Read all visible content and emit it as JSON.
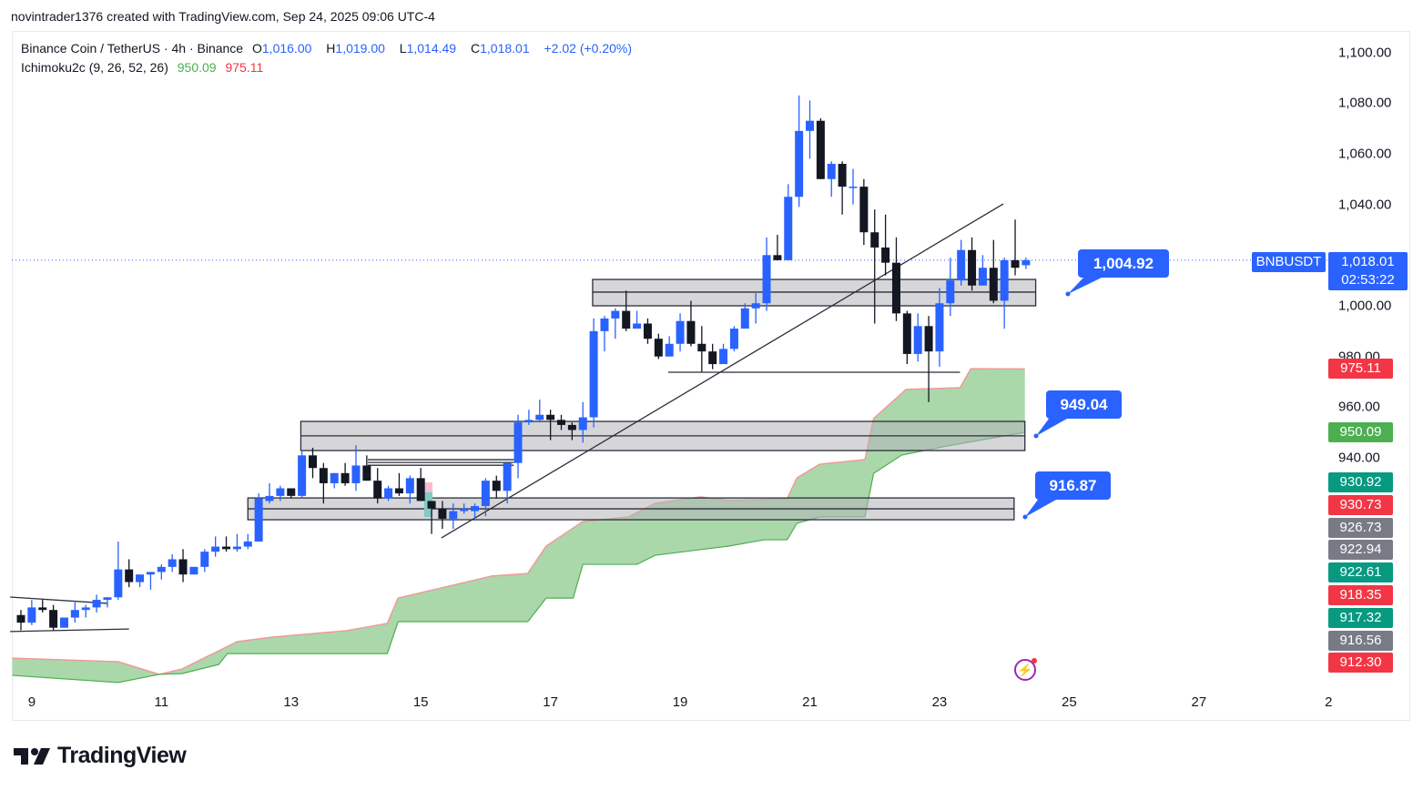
{
  "header": {
    "attribution": "novintrader1376 created with TradingView.com, Sep 24, 2025 09:06 UTC-4"
  },
  "legend": {
    "symbol": "Binance Coin / TetherUS · 4h · Binance",
    "o_label": "O",
    "o": "1,016.00",
    "h_label": "H",
    "h": "1,019.00",
    "l_label": "L",
    "l": "1,014.49",
    "c_label": "C",
    "c": "1,018.01",
    "change": "+2.02 (+0.20%)",
    "indicator": "Ichimoku2c (9, 26, 52, 26)",
    "ind_val1": "950.09",
    "ind_val2": "975.11"
  },
  "price_axis": {
    "ticks": [
      "1,100.00",
      "1,080.00",
      "1,060.00",
      "1,040.00",
      "1,000.00",
      "980.00",
      "960.00",
      "940.00"
    ],
    "tick_values": [
      1100,
      1080,
      1060,
      1040,
      1000,
      980,
      960,
      940
    ],
    "symbol_tag": "BNBUSDT",
    "last_price": "1,018.01",
    "countdown": "02:53:22",
    "labels": [
      {
        "text": "975.11",
        "value": 975.11,
        "color": "#f23645"
      },
      {
        "text": "950.09",
        "value": 950.09,
        "color": "#4caf50"
      },
      {
        "text": "930.92",
        "color": "#089981"
      },
      {
        "text": "930.73",
        "color": "#f23645"
      },
      {
        "text": "926.73",
        "color": "#787b86"
      },
      {
        "text": "922.94",
        "color": "#787b86"
      },
      {
        "text": "922.61",
        "color": "#089981"
      },
      {
        "text": "918.35",
        "color": "#f23645"
      },
      {
        "text": "917.32",
        "color": "#089981"
      },
      {
        "text": "916.56",
        "color": "#787b86"
      },
      {
        "text": "912.30",
        "color": "#f23645"
      }
    ]
  },
  "time_axis": {
    "ticks": [
      "9",
      "11",
      "13",
      "15",
      "17",
      "19",
      "21",
      "23",
      "25",
      "27",
      "2"
    ],
    "tick_index": [
      1,
      13,
      25,
      37,
      49,
      61,
      73,
      85,
      97,
      109,
      121
    ]
  },
  "callouts": [
    {
      "text": "1,004.92",
      "value": 1004.92
    },
    {
      "text": "949.04",
      "value": 949.04
    },
    {
      "text": "916.87",
      "value": 916.87
    }
  ],
  "colors": {
    "up": "#2962ff",
    "down": "#131722",
    "cloud": "#a5d6a7",
    "span_a": "#4caf50",
    "span_b": "#ef9a9a",
    "accent": "#2962ff"
  },
  "chart_data": {
    "type": "candlestick",
    "symbol": "BNBUSDT",
    "interval": "4h",
    "ylim": [
      840,
      1105
    ],
    "candles_ohlc": [
      [
        878,
        880,
        872,
        875
      ],
      [
        875,
        884,
        874,
        881
      ],
      [
        881,
        884,
        879,
        880
      ],
      [
        880,
        882,
        872,
        873
      ],
      [
        873,
        877,
        873,
        877
      ],
      [
        877,
        883,
        875,
        880
      ],
      [
        880,
        882,
        877,
        881
      ],
      [
        881,
        886,
        879,
        884
      ],
      [
        884,
        885,
        881,
        885
      ],
      [
        885,
        907,
        884,
        896
      ],
      [
        896,
        900,
        889,
        891
      ],
      [
        891,
        893,
        889,
        894
      ],
      [
        894,
        895,
        888,
        895
      ],
      [
        895,
        898,
        892,
        897
      ],
      [
        897,
        902,
        895,
        900
      ],
      [
        900,
        904,
        891,
        894
      ],
      [
        894,
        897,
        894,
        897
      ],
      [
        897,
        904,
        895,
        903
      ],
      [
        903,
        909,
        901,
        905
      ],
      [
        905,
        909,
        903,
        904
      ],
      [
        904,
        910,
        903,
        905
      ],
      [
        905,
        910,
        904,
        907
      ],
      [
        907,
        926,
        907,
        924
      ],
      [
        923,
        930,
        922,
        925
      ],
      [
        925,
        929,
        923,
        928
      ],
      [
        928,
        928,
        924,
        925
      ],
      [
        925,
        943,
        924,
        941
      ],
      [
        941,
        944,
        932,
        936
      ],
      [
        936,
        938,
        922,
        930
      ],
      [
        930,
        934,
        928,
        934
      ],
      [
        934,
        938,
        929,
        930
      ],
      [
        930,
        945,
        927,
        937
      ],
      [
        937,
        941,
        931,
        931
      ],
      [
        931,
        936,
        922,
        924
      ],
      [
        924,
        929,
        923,
        928
      ],
      [
        928,
        934,
        925,
        926
      ],
      [
        926,
        933,
        922,
        932
      ],
      [
        932,
        936,
        923,
        923
      ],
      [
        923,
        923,
        910,
        920
      ],
      [
        920,
        923,
        912,
        916
      ],
      [
        916,
        922,
        912,
        919
      ],
      [
        919,
        922,
        918,
        920
      ],
      [
        919,
        922,
        916,
        921
      ],
      [
        921,
        932,
        917,
        931
      ],
      [
        931,
        933,
        924,
        927
      ],
      [
        927,
        938,
        922,
        938
      ],
      [
        938,
        957,
        932,
        954
      ],
      [
        954,
        959,
        953,
        955
      ],
      [
        955,
        963,
        954,
        957
      ],
      [
        957,
        959,
        947,
        955
      ],
      [
        955,
        957,
        951,
        953
      ],
      [
        953,
        954,
        947,
        951
      ],
      [
        951,
        962,
        946,
        956
      ],
      [
        956,
        995,
        952,
        990
      ],
      [
        990,
        996,
        982,
        995
      ],
      [
        995,
        999,
        987,
        998
      ],
      [
        998,
        1006,
        990,
        991
      ],
      [
        991,
        998,
        991,
        993
      ],
      [
        993,
        995,
        985,
        987
      ],
      [
        987,
        989,
        979,
        980
      ],
      [
        980,
        988,
        980,
        985
      ],
      [
        985,
        997,
        982,
        994
      ],
      [
        994,
        1002,
        984,
        985
      ],
      [
        985,
        992,
        974,
        982
      ],
      [
        982,
        985,
        975,
        977
      ],
      [
        977,
        985,
        977,
        983
      ],
      [
        983,
        992,
        982,
        991
      ],
      [
        991,
        1001,
        991,
        999
      ],
      [
        999,
        1005,
        993,
        1001
      ],
      [
        1001,
        1027,
        998,
        1020
      ],
      [
        1020,
        1028,
        1018,
        1018
      ],
      [
        1018,
        1048,
        1018,
        1043
      ],
      [
        1043,
        1083,
        1039,
        1069
      ],
      [
        1069,
        1081,
        1058,
        1073
      ],
      [
        1073,
        1074,
        1050,
        1050
      ],
      [
        1050,
        1057,
        1043,
        1056
      ],
      [
        1056,
        1057,
        1036,
        1047
      ],
      [
        1047,
        1054,
        1040,
        1047
      ],
      [
        1047,
        1050,
        1024,
        1029
      ],
      [
        1029,
        1038,
        993,
        1023
      ],
      [
        1023,
        1036,
        1012,
        1017
      ],
      [
        1017,
        1027,
        994,
        997
      ],
      [
        997,
        998,
        977,
        981
      ],
      [
        981,
        997,
        978,
        992
      ],
      [
        992,
        996,
        962,
        982
      ],
      [
        982,
        1007,
        976,
        1001
      ],
      [
        1001,
        1019,
        996,
        1010
      ],
      [
        1010,
        1026,
        1008,
        1022
      ],
      [
        1022,
        1027,
        1006,
        1008
      ],
      [
        1008,
        1020,
        1008,
        1015
      ],
      [
        1015,
        1026,
        1001,
        1002
      ],
      [
        1002,
        1019,
        991,
        1018
      ],
      [
        1018,
        1034,
        1012,
        1015
      ],
      [
        1016,
        1019,
        1014.49,
        1018.01
      ]
    ],
    "ichimoku_cloud": {
      "upper_line": [
        [
          -0.8,
          861
        ],
        [
          9,
          859.6
        ],
        [
          12.8,
          854.6
        ],
        [
          14.9,
          856.7
        ],
        [
          18.3,
          863.9
        ],
        [
          20,
          867.5
        ],
        [
          23.3,
          869.3
        ],
        [
          30.1,
          871.8
        ],
        [
          33.9,
          874.7
        ],
        [
          34.9,
          884.7
        ],
        [
          43.6,
          893.4
        ],
        [
          46.9,
          894.4
        ],
        [
          48.6,
          905.2
        ],
        [
          52,
          914.9
        ],
        [
          56.2,
          916.7
        ],
        [
          58.7,
          922.1
        ],
        [
          62.9,
          924.6
        ],
        [
          65.5,
          923.2
        ],
        [
          70.9,
          923.9
        ],
        [
          71.8,
          932.1
        ],
        [
          73.9,
          937.5
        ],
        [
          78.1,
          939.3
        ],
        [
          78.9,
          955.5
        ],
        [
          81.9,
          967
        ],
        [
          86.9,
          967.7
        ],
        [
          87.9,
          975.2
        ],
        [
          92.9,
          975.11
        ]
      ],
      "lower_line": [
        [
          -0.8,
          854.2
        ],
        [
          9,
          851.4
        ],
        [
          12.8,
          854.6
        ],
        [
          14.9,
          854.9
        ],
        [
          18.3,
          858.5
        ],
        [
          19.1,
          862.8
        ],
        [
          33.9,
          862.8
        ],
        [
          34.9,
          875.4
        ],
        [
          46.9,
          875.4
        ],
        [
          48.6,
          884.7
        ],
        [
          51.1,
          884.7
        ],
        [
          52,
          898
        ],
        [
          57,
          898
        ],
        [
          58.7,
          901.6
        ],
        [
          65.5,
          905.2
        ],
        [
          68.8,
          907.7
        ],
        [
          70.9,
          907.7
        ],
        [
          71.8,
          914.2
        ],
        [
          73.9,
          916.7
        ],
        [
          78.1,
          916.7
        ],
        [
          78.9,
          933.9
        ],
        [
          81.5,
          941.1
        ],
        [
          85.7,
          944.7
        ],
        [
          92.9,
          950.09
        ]
      ]
    },
    "zones": [
      {
        "from": 52.9,
        "to": 93.9,
        "top": 1010.4,
        "mid": 1005.4,
        "bottom": 1000
      },
      {
        "from": 25.9,
        "to": 92.9,
        "top": 954.4,
        "mid": 948.7,
        "bottom": 942.9
      },
      {
        "from": 21.0,
        "to": 91.9,
        "top": 924.2,
        "mid": 919.9,
        "bottom": 915.6
      }
    ],
    "trendlines": [
      {
        "x1": 38.9,
        "y1": 908.4,
        "x2": 90.9,
        "y2": 1040.2
      },
      {
        "x1": 59.9,
        "y1": 973.8,
        "x2": 86.9,
        "y2": 973.8
      },
      {
        "x1": -1,
        "y1": 885.1,
        "x2": 8,
        "y2": 882.6
      },
      {
        "x1": -1,
        "y1": 871.5,
        "x2": 10,
        "y2": 872.5
      },
      {
        "x1": 32.1,
        "y1": 939.3,
        "x2": 45.6,
        "y2": 939.3
      },
      {
        "x1": 32.1,
        "y1": 938.2,
        "x2": 45.6,
        "y2": 938.2
      },
      {
        "x1": 32.1,
        "y1": 937.1,
        "x2": 45.6,
        "y2": 937.1
      }
    ],
    "last_price": 1018.01
  }
}
